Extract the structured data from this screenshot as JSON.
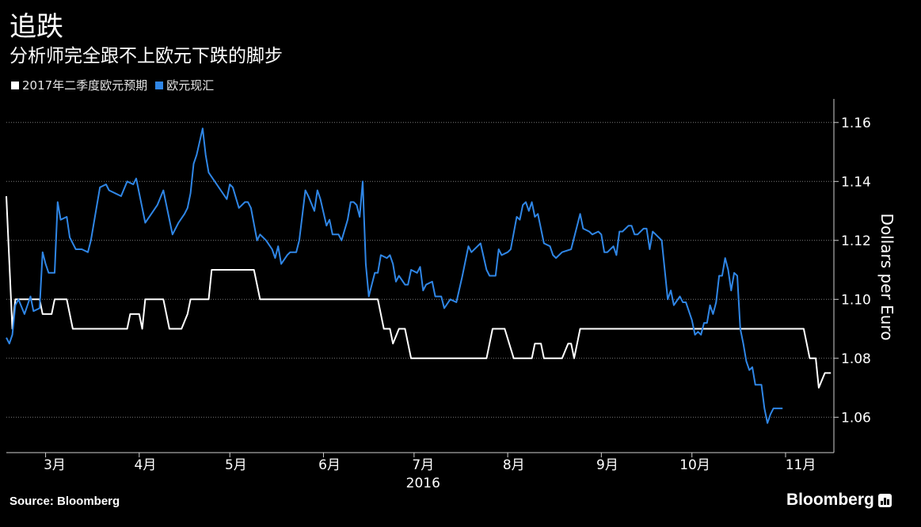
{
  "header": {
    "title": "追跌",
    "subtitle": "分析师完全跟不上欧元下跌的脚步"
  },
  "legend": [
    {
      "label": "2017年二季度欧元预期",
      "color": "#ffffff"
    },
    {
      "label": "欧元现汇",
      "color": "#2f86e6"
    }
  ],
  "footer": {
    "source": "Source: Bloomberg",
    "brand": "Bloomberg"
  },
  "chart_data": {
    "type": "line",
    "ylabel": "Dollars per Euro",
    "ylim": [
      1.048,
      1.168
    ],
    "yticks": [
      1.06,
      1.08,
      1.1,
      1.12,
      1.14,
      1.16
    ],
    "ytick_labels": [
      "1.06",
      "1.08",
      "1.10",
      "1.12",
      "1.14",
      "1.16"
    ],
    "xlim": [
      0,
      274
    ],
    "x_unit": "days since 2016-02-17",
    "month_ticks": [
      {
        "label": "3月",
        "x": 13
      },
      {
        "label": "4月",
        "x": 44
      },
      {
        "label": "5月",
        "x": 74
      },
      {
        "label": "6月",
        "x": 105
      },
      {
        "label": "7月",
        "x": 135
      },
      {
        "label": "8月",
        "x": 166
      },
      {
        "label": "9月",
        "x": 197
      },
      {
        "label": "10月",
        "x": 227
      },
      {
        "label": "11月",
        "x": 258
      }
    ],
    "month_label_positions": [
      16,
      46,
      76,
      107,
      138,
      168,
      199,
      228,
      263
    ],
    "year_label": "2016",
    "year_label_x": 138,
    "grid": true,
    "series": [
      {
        "name": "2017年二季度欧元预期",
        "color": "#ffffff",
        "points": [
          [
            0,
            1.135
          ],
          [
            2,
            1.09
          ],
          [
            3,
            1.1
          ],
          [
            11,
            1.1
          ],
          [
            12,
            1.095
          ],
          [
            15,
            1.095
          ],
          [
            16,
            1.1
          ],
          [
            20,
            1.1
          ],
          [
            22,
            1.09
          ],
          [
            40,
            1.09
          ],
          [
            41,
            1.095
          ],
          [
            44,
            1.095
          ],
          [
            45,
            1.09
          ],
          [
            46,
            1.1
          ],
          [
            52,
            1.1
          ],
          [
            54,
            1.09
          ],
          [
            58,
            1.09
          ],
          [
            60,
            1.095
          ],
          [
            61,
            1.1
          ],
          [
            67,
            1.1
          ],
          [
            68,
            1.11
          ],
          [
            82,
            1.11
          ],
          [
            84,
            1.1
          ],
          [
            123,
            1.1
          ],
          [
            124,
            1.095
          ],
          [
            125,
            1.09
          ],
          [
            127,
            1.09
          ],
          [
            128,
            1.085
          ],
          [
            130,
            1.09
          ],
          [
            132,
            1.09
          ],
          [
            134,
            1.08
          ],
          [
            159,
            1.08
          ],
          [
            161,
            1.09
          ],
          [
            165,
            1.09
          ],
          [
            168,
            1.08
          ],
          [
            174,
            1.08
          ],
          [
            175,
            1.085
          ],
          [
            177,
            1.085
          ],
          [
            178,
            1.08
          ],
          [
            184,
            1.08
          ],
          [
            186,
            1.085
          ],
          [
            187,
            1.085
          ],
          [
            188,
            1.08
          ],
          [
            189,
            1.085
          ],
          [
            190,
            1.09
          ],
          [
            264,
            1.09
          ],
          [
            266,
            1.08
          ],
          [
            268,
            1.08
          ],
          [
            269,
            1.07
          ],
          [
            271,
            1.075
          ],
          [
            273,
            1.075
          ]
        ]
      },
      {
        "name": "欧元现汇",
        "color": "#2f86e6",
        "points": [
          [
            0,
            1.087
          ],
          [
            1,
            1.085
          ],
          [
            2,
            1.088
          ],
          [
            3,
            1.098
          ],
          [
            4,
            1.1
          ],
          [
            6,
            1.095
          ],
          [
            8,
            1.101
          ],
          [
            9,
            1.096
          ],
          [
            11,
            1.097
          ],
          [
            12,
            1.116
          ],
          [
            13,
            1.112
          ],
          [
            14,
            1.109
          ],
          [
            16,
            1.109
          ],
          [
            17,
            1.133
          ],
          [
            18,
            1.127
          ],
          [
            20,
            1.128
          ],
          [
            21,
            1.121
          ],
          [
            23,
            1.117
          ],
          [
            25,
            1.117
          ],
          [
            27,
            1.116
          ],
          [
            28,
            1.12
          ],
          [
            30,
            1.132
          ],
          [
            31,
            1.138
          ],
          [
            33,
            1.139
          ],
          [
            34,
            1.137
          ],
          [
            36,
            1.136
          ],
          [
            38,
            1.135
          ],
          [
            40,
            1.14
          ],
          [
            42,
            1.139
          ],
          [
            43,
            1.141
          ],
          [
            45,
            1.131
          ],
          [
            46,
            1.126
          ],
          [
            48,
            1.129
          ],
          [
            50,
            1.132
          ],
          [
            52,
            1.137
          ],
          [
            53,
            1.132
          ],
          [
            55,
            1.122
          ],
          [
            57,
            1.126
          ],
          [
            59,
            1.129
          ],
          [
            60,
            1.131
          ],
          [
            61,
            1.136
          ],
          [
            62,
            1.146
          ],
          [
            63,
            1.149
          ],
          [
            65,
            1.158
          ],
          [
            66,
            1.149
          ],
          [
            67,
            1.143
          ],
          [
            69,
            1.14
          ],
          [
            71,
            1.137
          ],
          [
            73,
            1.134
          ],
          [
            74,
            1.139
          ],
          [
            75,
            1.138
          ],
          [
            77,
            1.131
          ],
          [
            79,
            1.133
          ],
          [
            80,
            1.133
          ],
          [
            81,
            1.131
          ],
          [
            83,
            1.12
          ],
          [
            84,
            1.122
          ],
          [
            86,
            1.12
          ],
          [
            88,
            1.117
          ],
          [
            89,
            1.114
          ],
          [
            90,
            1.118
          ],
          [
            91,
            1.112
          ],
          [
            93,
            1.115
          ],
          [
            94,
            1.116
          ],
          [
            96,
            1.116
          ],
          [
            97,
            1.12
          ],
          [
            99,
            1.137
          ],
          [
            100,
            1.135
          ],
          [
            102,
            1.13
          ],
          [
            103,
            1.137
          ],
          [
            104,
            1.134
          ],
          [
            106,
            1.125
          ],
          [
            107,
            1.127
          ],
          [
            108,
            1.122
          ],
          [
            110,
            1.122
          ],
          [
            111,
            1.12
          ],
          [
            113,
            1.127
          ],
          [
            114,
            1.133
          ],
          [
            115,
            1.133
          ],
          [
            116,
            1.132
          ],
          [
            117,
            1.128
          ],
          [
            118,
            1.14
          ],
          [
            119,
            1.112
          ],
          [
            120,
            1.101
          ],
          [
            122,
            1.109
          ],
          [
            123,
            1.109
          ],
          [
            124,
            1.115
          ],
          [
            126,
            1.114
          ],
          [
            127,
            1.115
          ],
          [
            128,
            1.112
          ],
          [
            129,
            1.106
          ],
          [
            130,
            1.108
          ],
          [
            132,
            1.105
          ],
          [
            133,
            1.105
          ],
          [
            134,
            1.11
          ],
          [
            136,
            1.109
          ],
          [
            137,
            1.111
          ],
          [
            138,
            1.103
          ],
          [
            139,
            1.105
          ],
          [
            141,
            1.106
          ],
          [
            142,
            1.101
          ],
          [
            144,
            1.101
          ],
          [
            145,
            1.097
          ],
          [
            147,
            1.1
          ],
          [
            149,
            1.099
          ],
          [
            151,
            1.108
          ],
          [
            153,
            1.118
          ],
          [
            154,
            1.116
          ],
          [
            156,
            1.118
          ],
          [
            157,
            1.119
          ],
          [
            159,
            1.11
          ],
          [
            160,
            1.108
          ],
          [
            162,
            1.108
          ],
          [
            163,
            1.117
          ],
          [
            164,
            1.115
          ],
          [
            166,
            1.116
          ],
          [
            167,
            1.117
          ],
          [
            169,
            1.128
          ],
          [
            170,
            1.127
          ],
          [
            171,
            1.132
          ],
          [
            172,
            1.133
          ],
          [
            173,
            1.13
          ],
          [
            174,
            1.133
          ],
          [
            175,
            1.128
          ],
          [
            176,
            1.129
          ],
          [
            178,
            1.119
          ],
          [
            180,
            1.118
          ],
          [
            181,
            1.115
          ],
          [
            182,
            1.114
          ],
          [
            184,
            1.116
          ],
          [
            187,
            1.117
          ],
          [
            189,
            1.125
          ],
          [
            190,
            1.129
          ],
          [
            191,
            1.124
          ],
          [
            193,
            1.123
          ],
          [
            194,
            1.122
          ],
          [
            196,
            1.123
          ],
          [
            197,
            1.122
          ],
          [
            198,
            1.116
          ],
          [
            199,
            1.116
          ],
          [
            201,
            1.118
          ],
          [
            202,
            1.115
          ],
          [
            203,
            1.123
          ],
          [
            204,
            1.123
          ],
          [
            206,
            1.125
          ],
          [
            207,
            1.125
          ],
          [
            208,
            1.122
          ],
          [
            209,
            1.122
          ],
          [
            211,
            1.124
          ],
          [
            212,
            1.124
          ],
          [
            213,
            1.117
          ],
          [
            214,
            1.123
          ],
          [
            215,
            1.122
          ],
          [
            217,
            1.12
          ],
          [
            218,
            1.11
          ],
          [
            219,
            1.1
          ],
          [
            220,
            1.103
          ],
          [
            221,
            1.098
          ],
          [
            223,
            1.101
          ],
          [
            224,
            1.099
          ],
          [
            225,
            1.099
          ],
          [
            227,
            1.093
          ],
          [
            228,
            1.088
          ],
          [
            229,
            1.089
          ],
          [
            230,
            1.088
          ],
          [
            231,
            1.092
          ],
          [
            232,
            1.092
          ],
          [
            233,
            1.098
          ],
          [
            234,
            1.095
          ],
          [
            235,
            1.099
          ],
          [
            236,
            1.108
          ],
          [
            237,
            1.108
          ],
          [
            238,
            1.114
          ],
          [
            239,
            1.11
          ],
          [
            240,
            1.103
          ],
          [
            241,
            1.109
          ],
          [
            242,
            1.108
          ],
          [
            243,
            1.09
          ],
          [
            244,
            1.085
          ],
          [
            245,
            1.079
          ],
          [
            246,
            1.076
          ],
          [
            247,
            1.077
          ],
          [
            248,
            1.071
          ],
          [
            250,
            1.071
          ],
          [
            251,
            1.063
          ],
          [
            252,
            1.058
          ],
          [
            253,
            1.061
          ],
          [
            254,
            1.063
          ],
          [
            256,
            1.063
          ],
          [
            257,
            1.063
          ]
        ]
      }
    ]
  }
}
